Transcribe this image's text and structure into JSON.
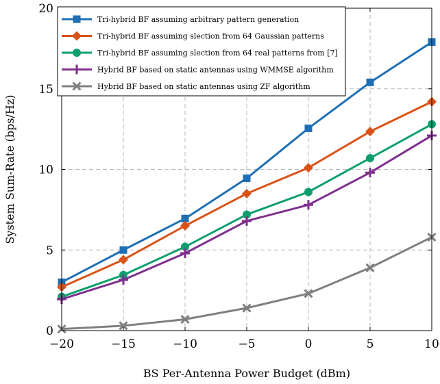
{
  "chart_data": {
    "type": "line",
    "xlabel": "BS Per-Antenna Power Budget (dBm)",
    "ylabel": "System Sum-Rate (bps/Hz)",
    "xlim": [
      -20,
      10
    ],
    "ylim": [
      0,
      20
    ],
    "x": [
      -20,
      -15,
      -10,
      -5,
      0,
      5,
      10
    ],
    "x_tick_labels": [
      "−20",
      "−15",
      "−10",
      "−5",
      "0",
      "5",
      "10"
    ],
    "y_ticks": [
      0,
      5,
      10,
      15,
      20
    ],
    "y_tick_labels": [
      "0",
      "5",
      "10",
      "15",
      "20"
    ],
    "grid": true,
    "legend_position": "top-left",
    "series": [
      {
        "name": "Tri-hybrid BF assuming arbitrary pattern generation",
        "color": "#1f6fb4",
        "marker": "square",
        "values": [
          3.0,
          5.0,
          6.95,
          9.45,
          12.55,
          15.4,
          17.9
        ]
      },
      {
        "name": "Tri-hybrid BF assuming slection from 64 Gaussian patterns",
        "color": "#d95319",
        "marker": "diamond",
        "values": [
          2.7,
          4.4,
          6.5,
          8.5,
          10.1,
          12.35,
          14.2
        ]
      },
      {
        "name": "Tri-hybrid BF assuming slection from 64 real patterns from [7]",
        "color": "#0e9f6e",
        "marker": "circle",
        "values": [
          2.1,
          3.45,
          5.2,
          7.2,
          8.6,
          10.7,
          12.8
        ]
      },
      {
        "name": "Hybrid BF based on static antennas using WMMSE algorithm",
        "color": "#7e2f8e",
        "marker": "plus",
        "values": [
          1.95,
          3.15,
          4.8,
          6.8,
          7.8,
          9.8,
          12.1
        ]
      },
      {
        "name": "Hybrid BF based on static antennas using ZF algorithm",
        "color": "#7f7f7f",
        "marker": "cross",
        "values": [
          0.1,
          0.3,
          0.7,
          1.4,
          2.3,
          3.9,
          5.8
        ]
      }
    ]
  }
}
